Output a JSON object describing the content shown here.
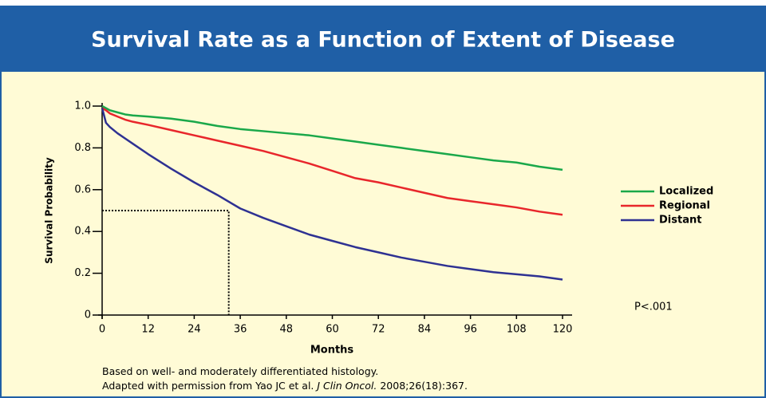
{
  "chart_data": {
    "type": "line",
    "title": "Survival Rate as a Function of Extent of Disease",
    "x_label": "Months",
    "y_label": "Survival Probability",
    "annotation": "P<.001",
    "footnote_1": "Based on well- and moderately differentiated histology.",
    "footnote_2": {
      "prefix": "Adapted with permission from Yao JC et al. ",
      "journal": "J Clin Oncol.",
      "citation": " 2008;26(18):367."
    },
    "x": [
      0,
      1,
      2,
      4,
      6,
      8,
      12,
      18,
      24,
      30,
      36,
      42,
      48,
      54,
      60,
      66,
      72,
      78,
      84,
      90,
      96,
      102,
      108,
      114,
      120
    ],
    "series": [
      {
        "name": "Localized",
        "color": "#1aa84a",
        "values": [
          1.0,
          0.99,
          0.98,
          0.97,
          0.96,
          0.955,
          0.95,
          0.94,
          0.925,
          0.905,
          0.89,
          0.88,
          0.87,
          0.86,
          0.845,
          0.83,
          0.815,
          0.8,
          0.785,
          0.77,
          0.755,
          0.74,
          0.73,
          0.71,
          0.695
        ]
      },
      {
        "name": "Regional",
        "color": "#e8262b",
        "values": [
          0.99,
          0.98,
          0.965,
          0.95,
          0.935,
          0.925,
          0.91,
          0.885,
          0.86,
          0.835,
          0.81,
          0.785,
          0.755,
          0.725,
          0.69,
          0.655,
          0.635,
          0.61,
          0.585,
          0.56,
          0.545,
          0.53,
          0.515,
          0.495,
          0.48
        ]
      },
      {
        "name": "Distant",
        "color": "#2e3192",
        "values": [
          0.99,
          0.92,
          0.9,
          0.87,
          0.845,
          0.82,
          0.77,
          0.7,
          0.635,
          0.575,
          0.51,
          0.465,
          0.425,
          0.385,
          0.355,
          0.325,
          0.3,
          0.275,
          0.255,
          0.235,
          0.22,
          0.205,
          0.195,
          0.185,
          0.17
        ]
      }
    ],
    "reference": {
      "x": 33,
      "y": 0.5
    },
    "xlim": [
      0,
      120
    ],
    "xticks": [
      0,
      12,
      24,
      36,
      48,
      60,
      72,
      84,
      96,
      108,
      120
    ],
    "ylim": [
      0,
      1
    ],
    "yticks": [
      0,
      0.2,
      0.4,
      0.6,
      0.8,
      {
        "value": 1,
        "label": "1.0"
      }
    ],
    "legend": "right",
    "grid": false
  }
}
